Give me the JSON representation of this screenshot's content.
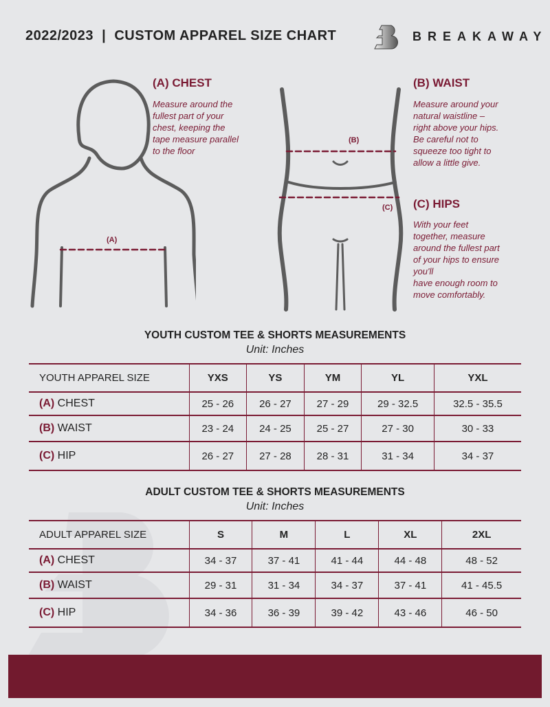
{
  "header": {
    "title": "2022/2023  |  CUSTOM APPAREL SIZE CHART",
    "brand": "BREAKAWAY"
  },
  "colors": {
    "accent": "#7a1a33",
    "background": "#e6e7e9",
    "footer": "#721a2e"
  },
  "guide": {
    "chest": {
      "heading": "(A) CHEST",
      "marker": "(A)",
      "text": "Measure around the\nfullest part of your\nchest, keeping the\ntape measure parallel\nto the floor"
    },
    "waist": {
      "heading": "(B) WAIST",
      "marker": "(B)",
      "text": "Measure around your\nnatural waistline –\nright above your hips.\nBe careful not to\nsqueeze too tight to\nallow a little give."
    },
    "hips": {
      "heading": "(C) HIPS",
      "marker": "(C)",
      "text": "With your feet\ntogether, measure\naround the fullest part\nof your hips to ensure\nyou'll\nhave enough room to\nmove comfortably."
    }
  },
  "youth": {
    "title": "YOUTH CUSTOM TEE & SHORTS MEASUREMENTS",
    "unit": "Unit: Inches",
    "size_label": "YOUTH APPAREL SIZE",
    "sizes": [
      "YXS",
      "YS",
      "YM",
      "YL",
      "YXL"
    ],
    "rows": [
      {
        "code": "(A)",
        "name": "CHEST",
        "values": [
          "25 - 26",
          "26 - 27",
          "27 - 29",
          "29 - 32.5",
          "32.5 - 35.5"
        ]
      },
      {
        "code": "(B)",
        "name": "WAIST",
        "values": [
          "23 - 24",
          "24 - 25",
          "25 - 27",
          "27 - 30",
          "30 - 33"
        ]
      },
      {
        "code": "(C)",
        "name": "HIP",
        "values": [
          "26 - 27",
          "27 - 28",
          "28 - 31",
          "31 - 34",
          "34 - 37"
        ]
      }
    ]
  },
  "adult": {
    "title": "ADULT CUSTOM TEE & SHORTS MEASUREMENTS",
    "unit": "Unit: Inches",
    "size_label": "ADULT APPAREL SIZE",
    "sizes": [
      "S",
      "M",
      "L",
      "XL",
      "2XL"
    ],
    "rows": [
      {
        "code": "(A)",
        "name": "CHEST",
        "values": [
          "34 - 37",
          "37 - 41",
          "41 - 44",
          "44 - 48",
          "48 - 52"
        ]
      },
      {
        "code": "(B)",
        "name": "WAIST",
        "values": [
          "29 - 31",
          "31 - 34",
          "34 - 37",
          "37 - 41",
          "41 - 45.5"
        ]
      },
      {
        "code": "(C)",
        "name": "HIP",
        "values": [
          "34 - 36",
          "36 - 39",
          "39 - 42",
          "43 - 46",
          "46 - 50"
        ]
      }
    ]
  }
}
